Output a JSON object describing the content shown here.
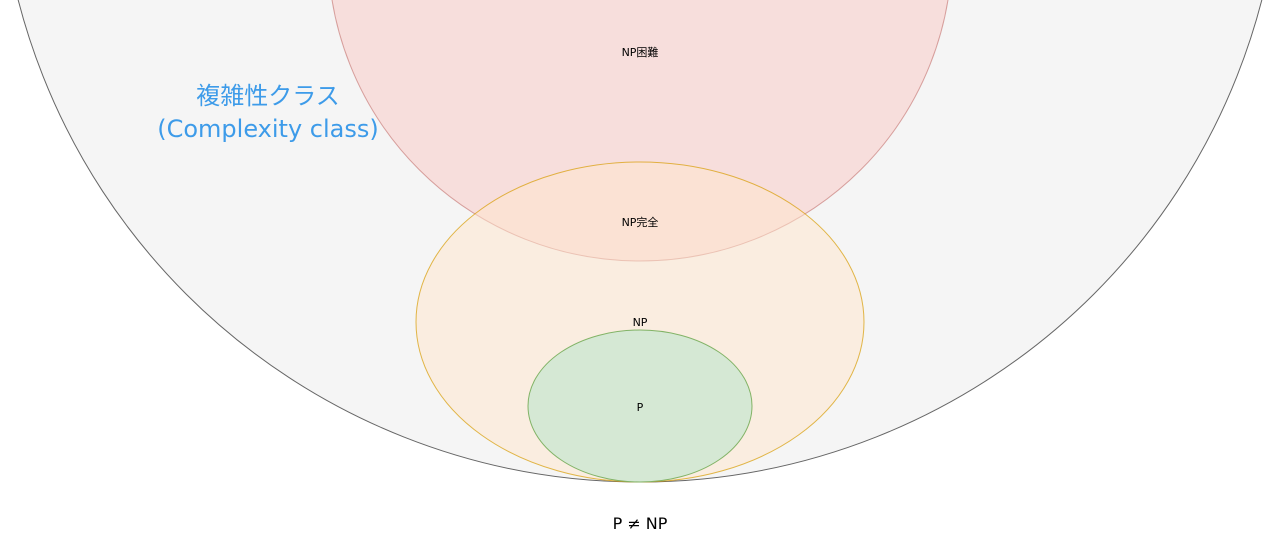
{
  "diagram": {
    "title_line1": "複雑性クラス",
    "title_line2": "(Complexity class)",
    "title_color": "#3d9be9",
    "regions": {
      "np_hard": {
        "label": "NP困難",
        "fill": "#f8cecc",
        "stroke": "#b85450"
      },
      "np_complete": {
        "label": "NP完全"
      },
      "np": {
        "label": "NP",
        "fill": "#ffe6cc",
        "stroke": "#d79b00"
      },
      "p": {
        "label": "P",
        "fill": "#d5e8d4",
        "stroke": "#82b366"
      },
      "complexity_class": {
        "fill": "#f5f5f5",
        "stroke": "#666666"
      }
    },
    "caption": "P ≠ NP"
  }
}
